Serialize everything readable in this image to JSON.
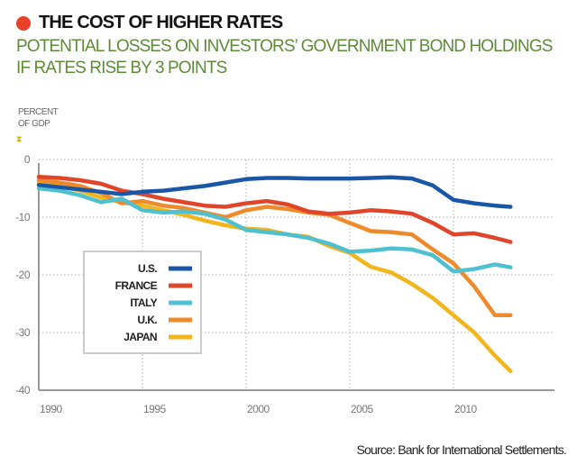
{
  "header": {
    "title": "THE COST OF HIGHER RATES",
    "subtitle": "POTENTIAL LOSSES ON INVESTORS’ GOVERNMENT BOND HOLDINGS IF RATES RISE BY 3 POINTS",
    "accent_color": "#e8402a",
    "subtitle_color": "#5f8a3a"
  },
  "footer": {
    "source": "Source: Bank for International Settlements."
  },
  "chart_data": {
    "type": "line",
    "title": "THE COST OF HIGHER RATES",
    "subtitle": "POTENTIAL LOSSES ON INVESTORS’ GOVERNMENT BOND HOLDINGS IF RATES RISE BY 3 POINTS",
    "xlabel": "",
    "ylabel": "PERCENT OF GDP",
    "ylabel_lines": [
      "PERCENT",
      "OF GDP"
    ],
    "xlim": [
      1990,
      2015
    ],
    "ylim": [
      -40,
      0
    ],
    "x_ticks": [
      1990,
      1995,
      2000,
      2005,
      2010
    ],
    "x_tick_labels": [
      "1990",
      "1995",
      "2000",
      "2005",
      "2010"
    ],
    "y_ticks": [
      0,
      -10,
      -20,
      -30,
      -40
    ],
    "y_tick_labels": [
      "0",
      "-10",
      "-20",
      "-30",
      "-40"
    ],
    "grid": "dotted",
    "legend_position": "lower-left",
    "x": [
      1990,
      1991,
      1992,
      1993,
      1994,
      1995,
      1996,
      1997,
      1998,
      1999,
      2000,
      2001,
      2002,
      2003,
      2004,
      2005,
      2006,
      2007,
      2008,
      2009,
      2010,
      2011,
      2012,
      2012.75
    ],
    "series": [
      {
        "name": "U.S.",
        "color": "#1a56a8",
        "values": [
          -4.4,
          -4.8,
          -5.2,
          -5.6,
          -6.0,
          -5.6,
          -5.4,
          -5.0,
          -4.6,
          -4.0,
          -3.4,
          -3.2,
          -3.2,
          -3.3,
          -3.3,
          -3.3,
          -3.2,
          -3.1,
          -3.3,
          -4.5,
          -7.0,
          -7.6,
          -8.0,
          -8.2
        ]
      },
      {
        "name": "FRANCE",
        "color": "#e0452a",
        "values": [
          -3.0,
          -3.2,
          -3.6,
          -4.2,
          -5.4,
          -6.0,
          -6.8,
          -7.4,
          -8.0,
          -8.2,
          -7.6,
          -7.2,
          -7.8,
          -9.0,
          -9.4,
          -9.2,
          -8.8,
          -9.0,
          -9.4,
          -11.0,
          -13.0,
          -12.8,
          -13.6,
          -14.3
        ]
      },
      {
        "name": "ITALY",
        "color": "#4fc0cf",
        "values": [
          -5.0,
          -5.4,
          -6.2,
          -7.4,
          -6.8,
          -8.8,
          -9.2,
          -9.0,
          -9.4,
          -10.4,
          -12.2,
          -12.6,
          -13.0,
          -13.6,
          -14.6,
          -16.0,
          -15.8,
          -15.4,
          -15.6,
          -16.6,
          -19.4,
          -19.0,
          -18.2,
          -18.7
        ]
      },
      {
        "name": "U.K.",
        "color": "#ef8a2a",
        "values": [
          -3.6,
          -4.0,
          -4.6,
          -5.8,
          -7.6,
          -7.2,
          -8.0,
          -8.4,
          -9.2,
          -10.0,
          -8.8,
          -8.2,
          -8.6,
          -9.2,
          -9.6,
          -11.0,
          -12.4,
          -12.6,
          -13.0,
          -15.6,
          -18.0,
          -22.0,
          -27.0,
          -27.0
        ]
      },
      {
        "name": "JAPAN",
        "color": "#f2b51e",
        "values": [
          -4.0,
          -4.6,
          -5.4,
          -6.6,
          -7.4,
          -8.0,
          -8.8,
          -9.6,
          -10.6,
          -11.4,
          -12.0,
          -12.2,
          -13.0,
          -13.4,
          -15.0,
          -16.2,
          -18.6,
          -19.6,
          -21.6,
          -24.0,
          -27.0,
          -30.0,
          -34.0,
          -36.7
        ]
      }
    ],
    "legend": [
      "U.S.",
      "FRANCE",
      "ITALY",
      "U.K.",
      "JAPAN"
    ]
  }
}
